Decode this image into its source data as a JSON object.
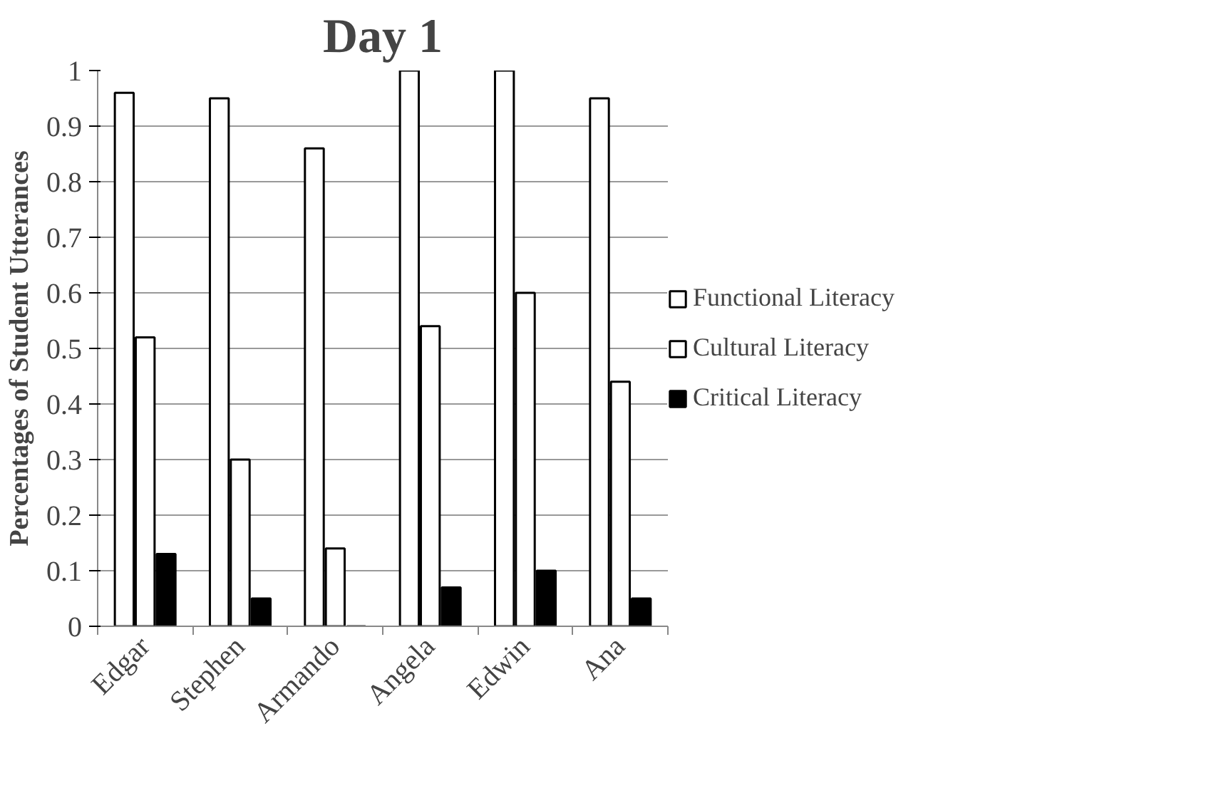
{
  "chart_data": {
    "type": "bar",
    "title": "Day 1",
    "ylabel": "Percentages of Student Utterances",
    "categories": [
      "Edgar",
      "Stephen",
      "Armando",
      "Angela",
      "Edwin",
      "Ana"
    ],
    "series": [
      {
        "name": "Functional Literacy",
        "color": "#ffffff",
        "values": [
          0.96,
          0.95,
          0.86,
          1.0,
          1.0,
          0.95
        ]
      },
      {
        "name": "Cultural Literacy",
        "color": "#ffffff",
        "values": [
          0.52,
          0.3,
          0.14,
          0.54,
          0.6,
          0.44
        ]
      },
      {
        "name": "Critical Literacy",
        "color": "#000000",
        "values": [
          0.13,
          0.05,
          0,
          0.07,
          0.1,
          0.05
        ]
      }
    ],
    "ylim": [
      0,
      1
    ],
    "yticks": [
      0,
      0.1,
      0.2,
      0.3,
      0.4,
      0.5,
      0.6,
      0.7,
      0.8,
      0.9,
      1
    ],
    "grid": "y",
    "legend": "right"
  }
}
